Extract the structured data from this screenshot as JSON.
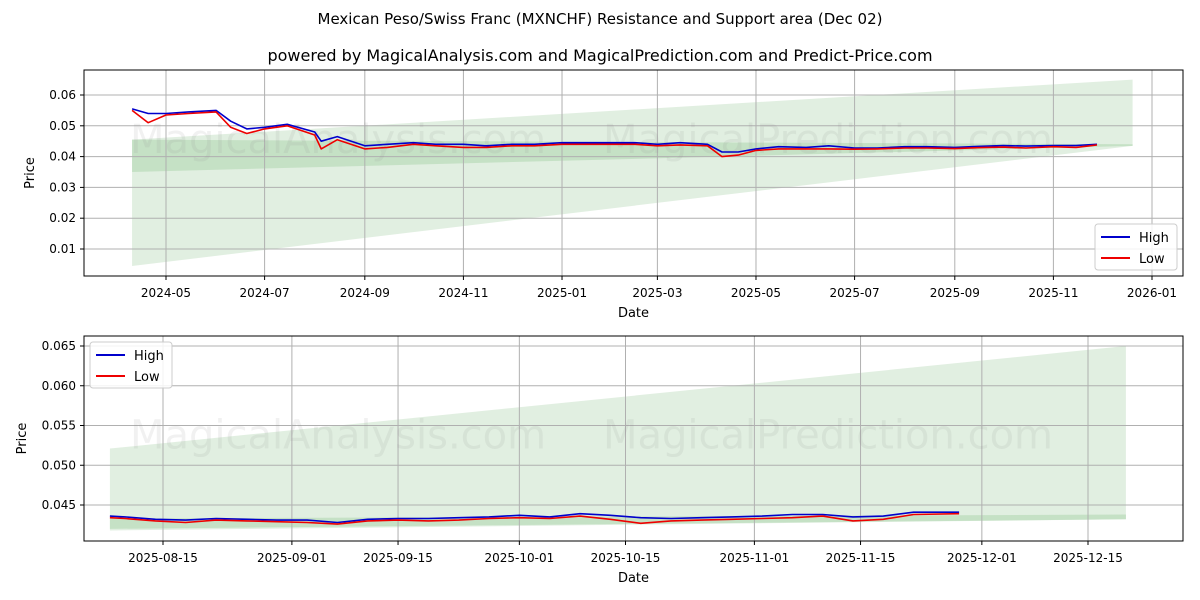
{
  "header": {
    "title": "Mexican Peso/Swiss Franc (MXNCHF) Resistance and Support area (Dec 02)",
    "subtitle": "powered by MagicalAnalysis.com and MagicalPrediction.com and Predict-Price.com"
  },
  "watermarks": [
    "MagicalAnalysis.com",
    "MagicalPrediction.com"
  ],
  "colors": {
    "high": "#0000cc",
    "low": "#ee0000",
    "band_light": "#dcecdc",
    "band_dark": "#b9dbb9",
    "grid": "#b0b0b0"
  },
  "chart_data": [
    {
      "type": "line",
      "title": "",
      "xlabel": "Date",
      "ylabel": "Price",
      "ylim": [
        0.0,
        0.068
      ],
      "grid": true,
      "legend_position": "lower right",
      "x_ticks": [
        "2024-05",
        "2024-07",
        "2024-09",
        "2024-11",
        "2025-01",
        "2025-03",
        "2025-05",
        "2025-07",
        "2025-09",
        "2025-11",
        "2026-01"
      ],
      "y_ticks": [
        "0.01",
        "0.02",
        "0.03",
        "0.04",
        "0.05",
        "0.06"
      ],
      "legend": [
        "High",
        "Low"
      ],
      "x": [
        "2024-04-10",
        "2024-04-20",
        "2024-05-01",
        "2024-05-15",
        "2024-06-01",
        "2024-06-10",
        "2024-06-20",
        "2024-07-01",
        "2024-07-15",
        "2024-08-01",
        "2024-08-05",
        "2024-08-15",
        "2024-09-01",
        "2024-09-15",
        "2024-10-01",
        "2024-10-15",
        "2024-11-01",
        "2024-11-15",
        "2024-12-01",
        "2024-12-15",
        "2025-01-01",
        "2025-01-15",
        "2025-02-01",
        "2025-02-15",
        "2025-03-01",
        "2025-03-15",
        "2025-04-01",
        "2025-04-10",
        "2025-04-20",
        "2025-05-01",
        "2025-05-15",
        "2025-06-01",
        "2025-06-15",
        "2025-07-01",
        "2025-07-15",
        "2025-08-01",
        "2025-08-15",
        "2025-09-01",
        "2025-09-15",
        "2025-10-01",
        "2025-10-15",
        "2025-11-01",
        "2025-11-15",
        "2025-11-28"
      ],
      "series": [
        {
          "name": "High",
          "values": [
            0.0555,
            0.054,
            0.054,
            0.0545,
            0.055,
            0.0515,
            0.049,
            0.0495,
            0.0505,
            0.048,
            0.045,
            0.0465,
            0.0435,
            0.044,
            0.0445,
            0.044,
            0.044,
            0.0435,
            0.044,
            0.044,
            0.0445,
            0.0445,
            0.0445,
            0.0445,
            0.044,
            0.0445,
            0.044,
            0.0415,
            0.0415,
            0.0425,
            0.0432,
            0.043,
            0.0435,
            0.0428,
            0.0428,
            0.0432,
            0.0432,
            0.043,
            0.0433,
            0.0436,
            0.0434,
            0.0436,
            0.0436,
            0.044
          ]
        },
        {
          "name": "Low",
          "values": [
            0.055,
            0.051,
            0.0535,
            0.054,
            0.0545,
            0.0495,
            0.0475,
            0.049,
            0.05,
            0.047,
            0.0425,
            0.0455,
            0.0425,
            0.043,
            0.044,
            0.0435,
            0.043,
            0.043,
            0.0435,
            0.0435,
            0.044,
            0.044,
            0.044,
            0.044,
            0.0435,
            0.0438,
            0.0435,
            0.04,
            0.0405,
            0.042,
            0.0425,
            0.0425,
            0.0425,
            0.0424,
            0.0425,
            0.0428,
            0.0428,
            0.0426,
            0.0429,
            0.0431,
            0.0428,
            0.0432,
            0.043,
            0.0438
          ]
        }
      ],
      "bands": [
        {
          "name": "support-wide",
          "x_start": "2024-04-10",
          "x_end": "2025-12-20",
          "lower_start": 0.0045,
          "lower_end": 0.0435,
          "upper_start": 0.0455,
          "upper_end": 0.065
        },
        {
          "name": "support-core",
          "x_start": "2024-04-10",
          "x_end": "2025-12-20",
          "lower_start": 0.035,
          "lower_end": 0.0435,
          "upper_start": 0.0455,
          "upper_end": 0.044
        }
      ]
    },
    {
      "type": "line",
      "title": "",
      "xlabel": "Date",
      "ylabel": "Price",
      "ylim": [
        0.041,
        0.0663
      ],
      "grid": true,
      "legend_position": "upper left",
      "x_ticks": [
        "2025-08-15",
        "2025-09-01",
        "2025-09-15",
        "2025-10-01",
        "2025-10-15",
        "2025-11-01",
        "2025-11-15",
        "2025-12-01",
        "2025-12-15"
      ],
      "y_ticks": [
        "0.045",
        "0.050",
        "0.055",
        "0.060",
        "0.065"
      ],
      "legend": [
        "High",
        "Low"
      ],
      "x": [
        "2025-08-08",
        "2025-08-10",
        "2025-08-14",
        "2025-08-18",
        "2025-08-22",
        "2025-08-26",
        "2025-08-30",
        "2025-09-03",
        "2025-09-07",
        "2025-09-11",
        "2025-09-15",
        "2025-09-19",
        "2025-09-23",
        "2025-09-27",
        "2025-10-01",
        "2025-10-05",
        "2025-10-09",
        "2025-10-13",
        "2025-10-17",
        "2025-10-21",
        "2025-10-25",
        "2025-10-29",
        "2025-11-02",
        "2025-11-06",
        "2025-11-10",
        "2025-11-14",
        "2025-11-18",
        "2025-11-22",
        "2025-11-28"
      ],
      "series": [
        {
          "name": "High",
          "values": [
            0.0436,
            0.0435,
            0.0432,
            0.0431,
            0.0433,
            0.0432,
            0.0431,
            0.0431,
            0.0428,
            0.0432,
            0.0433,
            0.0433,
            0.0434,
            0.0435,
            0.0437,
            0.0435,
            0.0439,
            0.0437,
            0.0434,
            0.0433,
            0.0434,
            0.0435,
            0.0436,
            0.0438,
            0.0438,
            0.0435,
            0.0436,
            0.0441,
            0.0441
          ]
        },
        {
          "name": "Low",
          "values": [
            0.0434,
            0.0433,
            0.043,
            0.0428,
            0.0431,
            0.043,
            0.0429,
            0.0428,
            0.0426,
            0.043,
            0.0431,
            0.043,
            0.0431,
            0.0433,
            0.0434,
            0.0433,
            0.0436,
            0.0432,
            0.0427,
            0.043,
            0.0431,
            0.0432,
            0.0433,
            0.0434,
            0.0436,
            0.043,
            0.0432,
            0.0438,
            0.0439
          ]
        }
      ],
      "bands": [
        {
          "name": "support-wide",
          "x_start": "2025-08-08",
          "x_end": "2025-12-20",
          "lower_start": 0.0418,
          "lower_end": 0.0432,
          "upper_start": 0.0521,
          "upper_end": 0.065
        },
        {
          "name": "support-core",
          "x_start": "2025-08-08",
          "x_end": "2025-12-20",
          "lower_start": 0.042,
          "lower_end": 0.0432,
          "upper_start": 0.0433,
          "upper_end": 0.0438
        }
      ]
    }
  ]
}
